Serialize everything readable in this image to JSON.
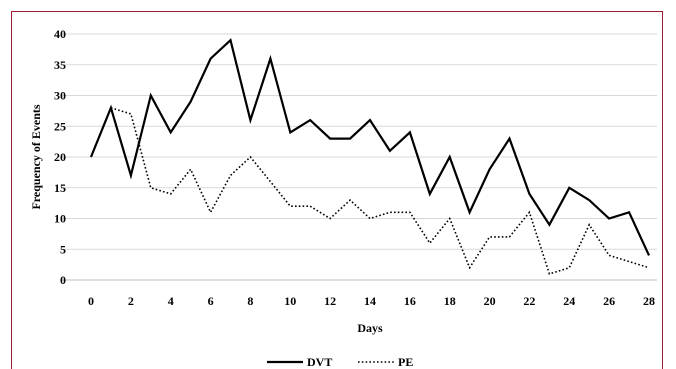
{
  "chart_data": {
    "type": "line",
    "title": "",
    "xlabel": "Days",
    "ylabel": "Frequency of Events",
    "xlim": [
      0,
      28
    ],
    "ylim": [
      0,
      40
    ],
    "x_ticks": [
      0,
      2,
      4,
      6,
      8,
      10,
      12,
      14,
      16,
      18,
      20,
      22,
      24,
      26,
      28
    ],
    "y_ticks": [
      0,
      5,
      10,
      15,
      20,
      25,
      30,
      35,
      40
    ],
    "grid": "horizontal",
    "legend": "bottom-center",
    "x": [
      0,
      1,
      2,
      3,
      4,
      5,
      6,
      7,
      8,
      9,
      10,
      11,
      12,
      13,
      14,
      15,
      16,
      17,
      18,
      19,
      20,
      21,
      22,
      23,
      24,
      25,
      26,
      27,
      28
    ],
    "series": [
      {
        "name": "DVT",
        "style": "solid",
        "color": "#000000",
        "values": [
          20,
          28,
          17,
          30,
          24,
          29,
          36,
          39,
          26,
          36,
          24,
          26,
          23,
          23,
          26,
          21,
          24,
          14,
          20,
          11,
          18,
          23,
          14,
          9,
          15,
          13,
          10,
          11,
          4
        ]
      },
      {
        "name": "PE",
        "style": "dotted",
        "color": "#000000",
        "values": [
          null,
          28,
          27,
          15,
          14,
          18,
          11,
          17,
          20,
          16,
          12,
          12,
          10,
          13,
          10,
          11,
          11,
          6,
          10,
          2,
          7,
          7,
          11,
          1,
          2,
          9,
          4,
          3,
          2
        ]
      }
    ]
  },
  "colors": {
    "border": "#9b1b30",
    "grid": "#d9d9d9"
  }
}
